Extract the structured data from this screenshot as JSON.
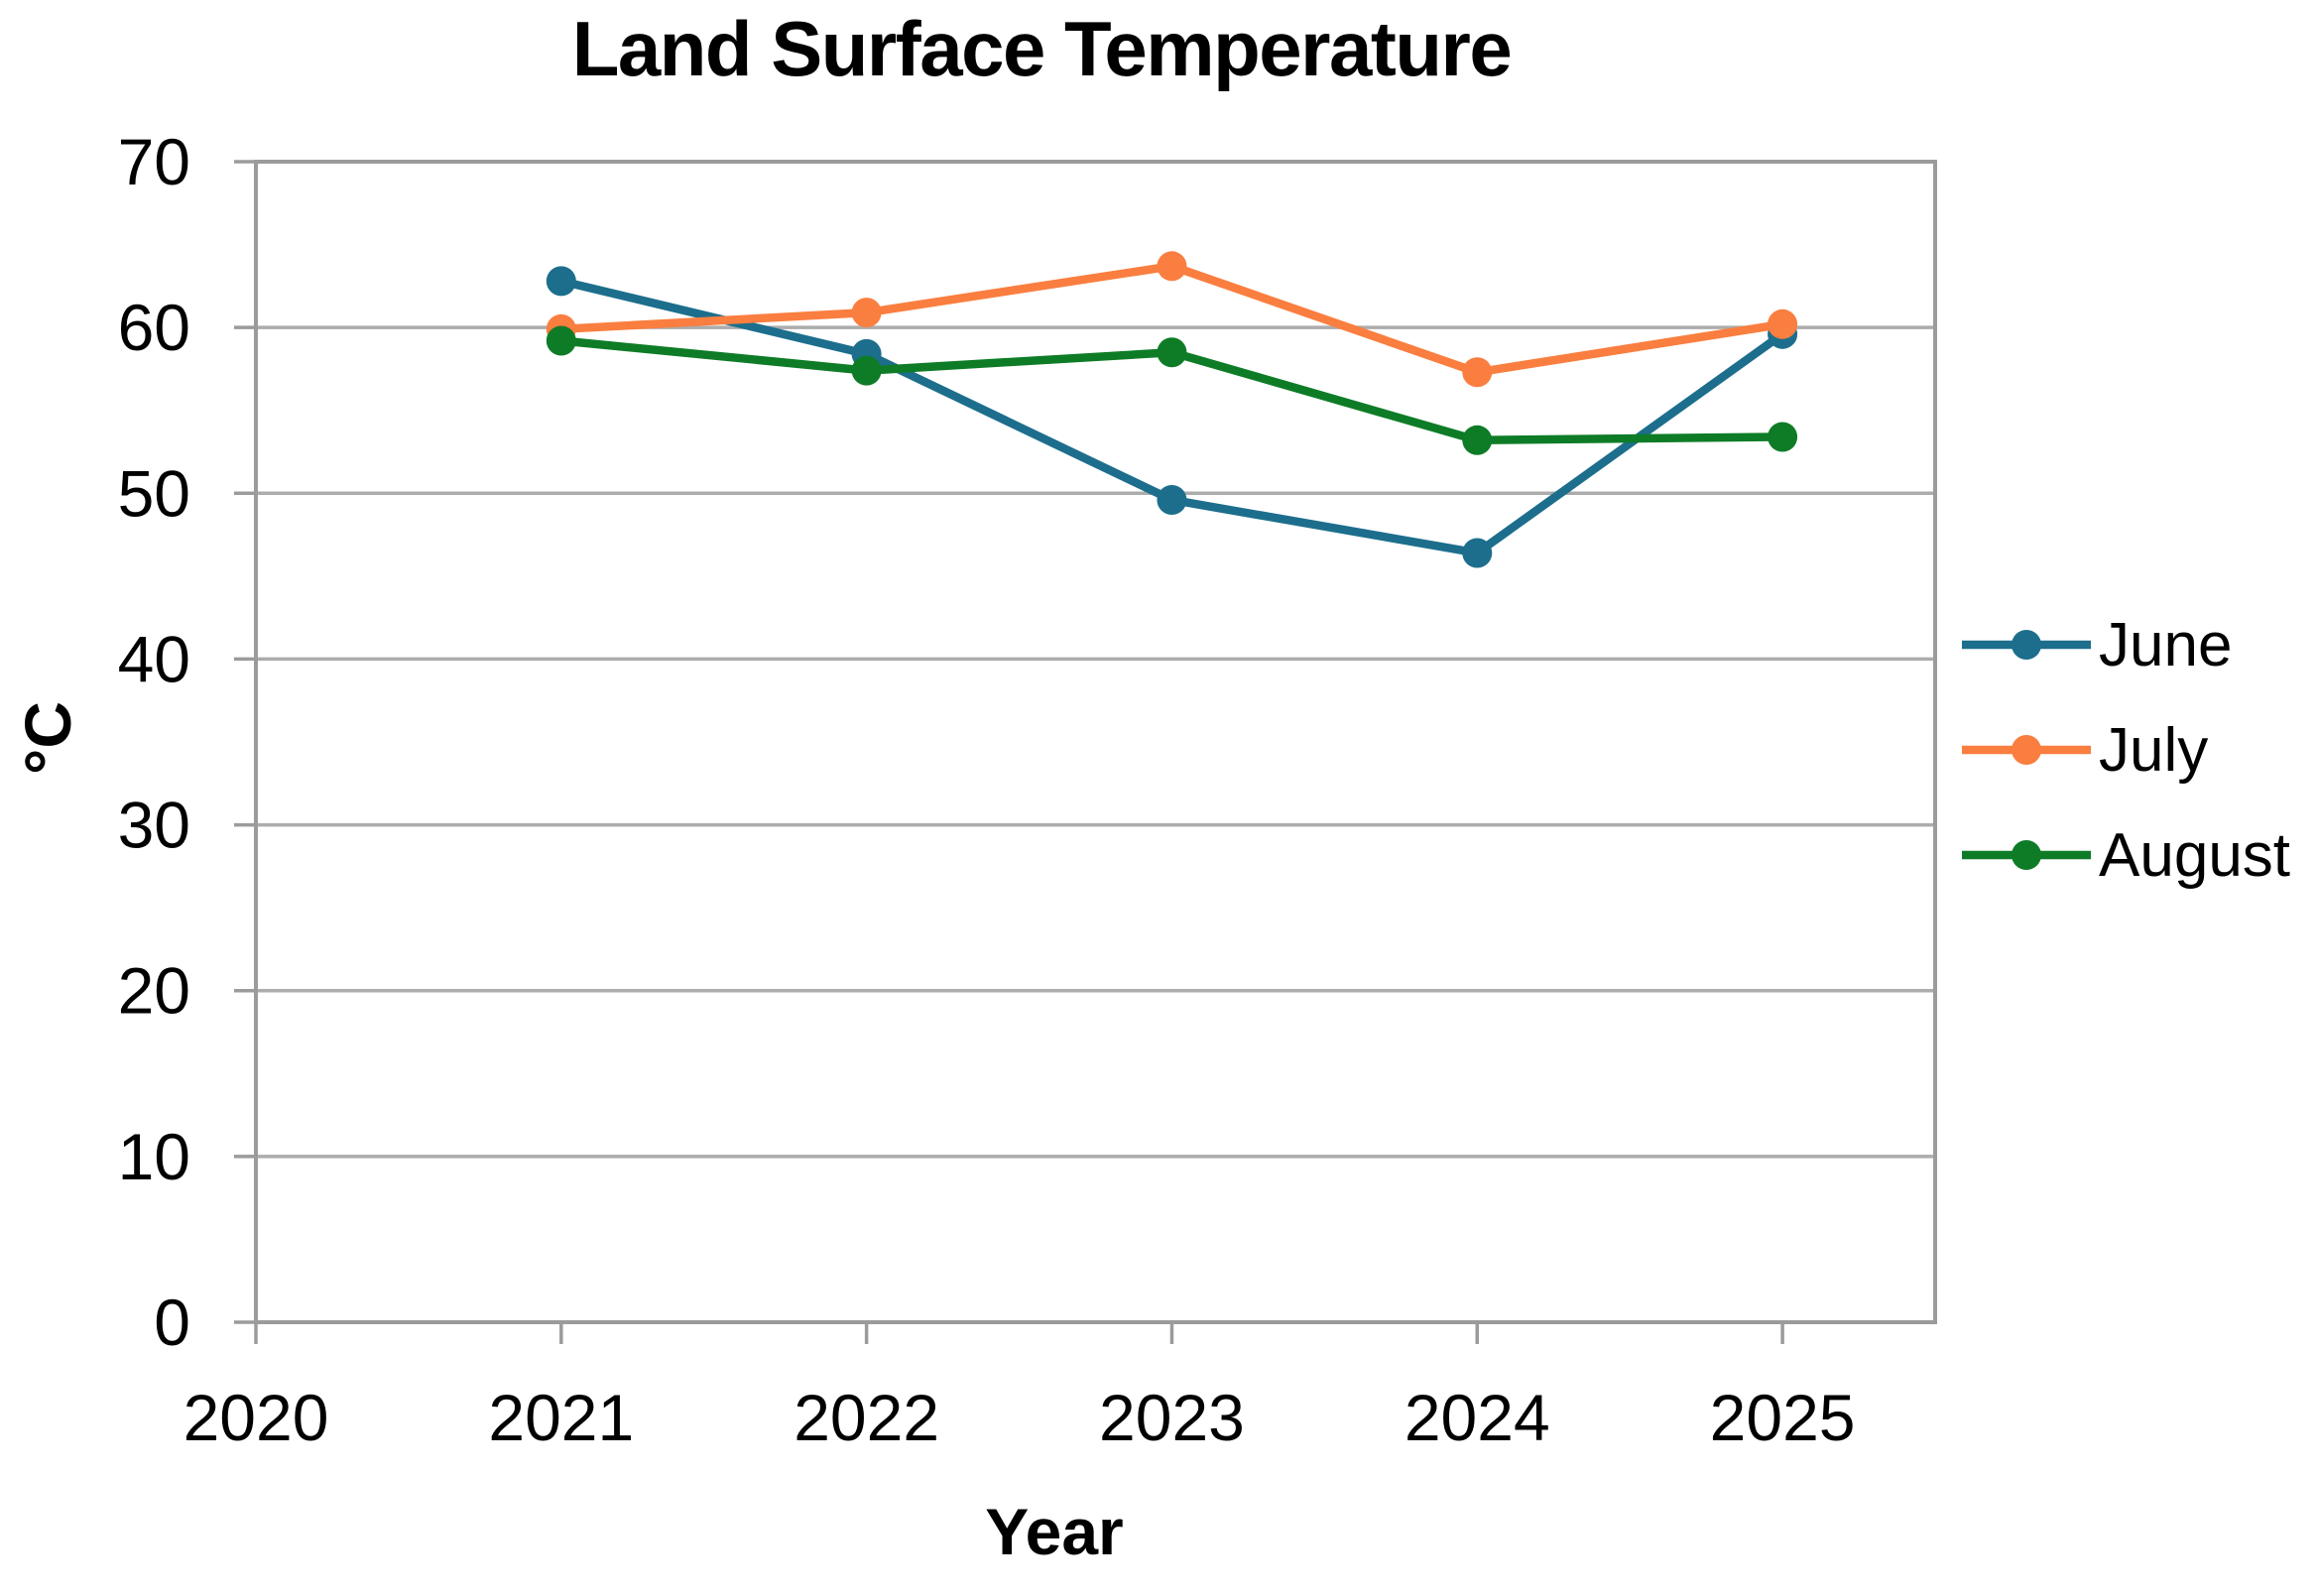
{
  "chart_data": {
    "type": "line",
    "title": "Land Surface Temperature",
    "xlabel": "Year",
    "ylabel": "°C",
    "x": [
      2021,
      2022,
      2023,
      2024,
      2025
    ],
    "series": [
      {
        "name": "June",
        "color": "#1C6E8C",
        "values": [
          62.8,
          58.4,
          49.6,
          46.4,
          59.6
        ]
      },
      {
        "name": "July",
        "color": "#FA7E3F",
        "values": [
          59.9,
          60.9,
          63.7,
          57.3,
          60.2
        ]
      },
      {
        "name": "August",
        "color": "#0E7C26",
        "values": [
          59.2,
          57.4,
          58.5,
          53.2,
          53.4
        ]
      }
    ],
    "xlim": [
      2020,
      2025.5
    ],
    "ylim": [
      0,
      70
    ],
    "x_ticks": [
      2020,
      2021,
      2022,
      2023,
      2024,
      2025
    ],
    "y_ticks": [
      0,
      10,
      20,
      30,
      40,
      50,
      60,
      70
    ],
    "grid": "horizontal",
    "plot_border": true,
    "legend_position": "right",
    "gridline_color": "#ACACAC",
    "axis_color": "#9B9B9B",
    "text_color": "#000000",
    "background_color": "#FFFFFF",
    "marker": "circle"
  }
}
